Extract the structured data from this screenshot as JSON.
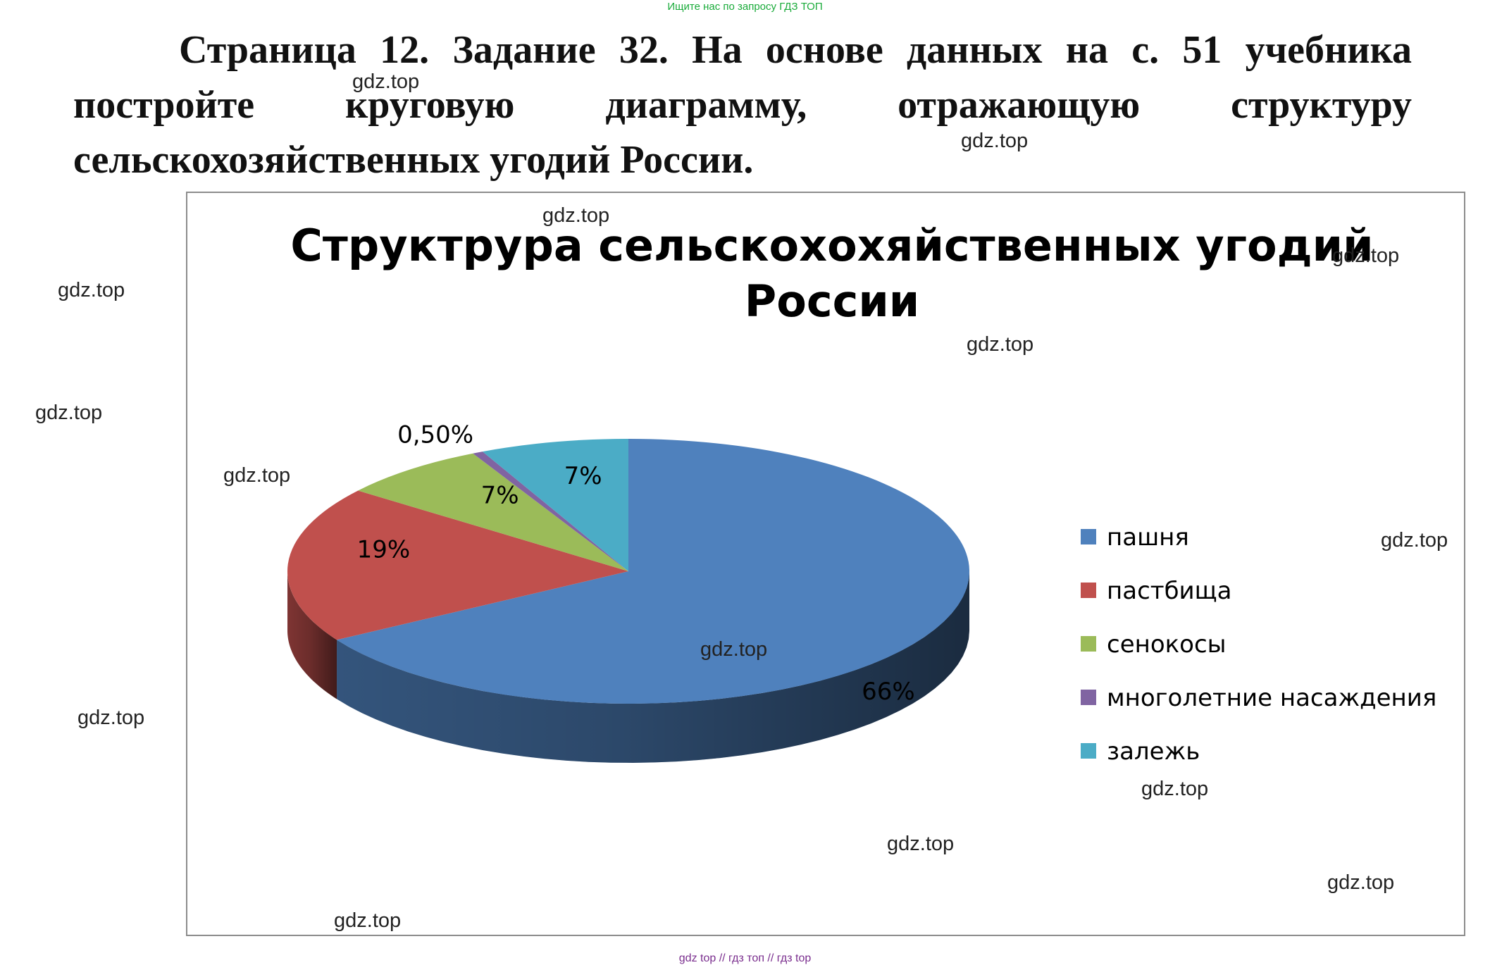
{
  "top_banner": "Ищите нас по запросу ГДЗ ТОП",
  "task_text": "Страница 12. Задание 32.    На основе данных на с. 51 учебника постройте круговую диаграмму, отражающую структуру сельскохозяйственных угодий России.",
  "watermark": "gdz.top",
  "bottom_banner": "gdz top  //  гдз топ  //  гдз top",
  "chart_data": {
    "type": "pie",
    "title": "Структрура сельскохохяйственных угодий России",
    "categories": [
      "пашня",
      "пастбища",
      "сенокосы",
      "многолетние насаждения",
      "залежь"
    ],
    "values": [
      66,
      19,
      7,
      0.5,
      7
    ],
    "data_labels": [
      "66%",
      "19%",
      "7%",
      "0,50%",
      "7%"
    ],
    "colors": [
      "#4F81BD",
      "#C0504D",
      "#9BBB59",
      "#8064A2",
      "#4BACC6"
    ],
    "legend_position": "right",
    "style": "3d"
  }
}
